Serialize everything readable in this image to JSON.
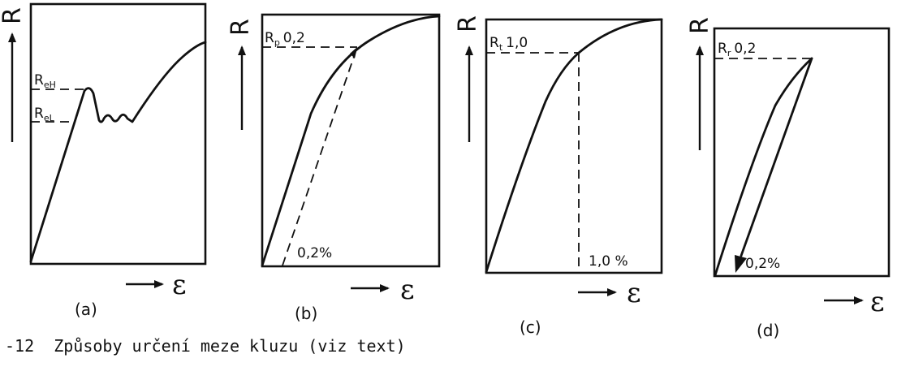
{
  "axes": {
    "y": "R",
    "x": "ε"
  },
  "panels": [
    {
      "id": "a",
      "tag": "(a)",
      "label_upper": "R",
      "label_upper_sub": "eH",
      "label_lower": "R",
      "label_lower_sub": "eL"
    },
    {
      "id": "b",
      "tag": "(b)",
      "label_upper": "R",
      "label_upper_sub": "p",
      "label_upper_value": "0,2",
      "strain_label": "0,2%"
    },
    {
      "id": "c",
      "tag": "(c)",
      "label_upper": "R",
      "label_upper_sub": "t",
      "label_upper_value": "1,0",
      "strain_label": "1,0 %"
    },
    {
      "id": "d",
      "tag": "(d)",
      "label_upper": "R",
      "label_upper_sub": "r",
      "label_upper_value": "0,2",
      "strain_label": "0,2%"
    }
  ],
  "caption": "-12  Způsoby určení meze kluzu (viz text)"
}
